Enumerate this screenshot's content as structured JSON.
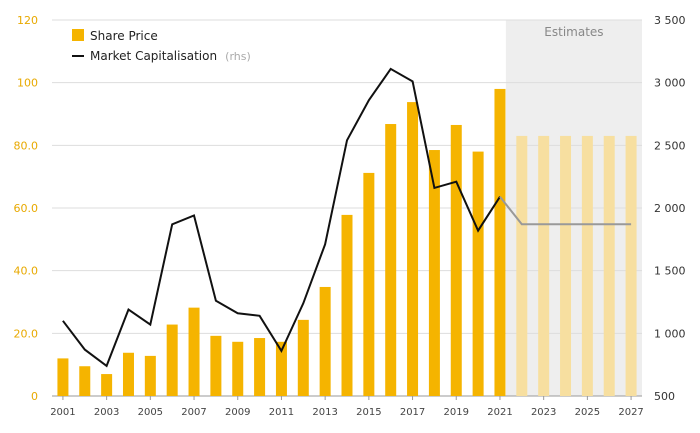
{
  "chart_data": {
    "type": "bar",
    "title": "",
    "x": [
      2001,
      2002,
      2003,
      2004,
      2005,
      2006,
      2007,
      2008,
      2009,
      2010,
      2011,
      2012,
      2013,
      2014,
      2015,
      2016,
      2017,
      2018,
      2019,
      2020,
      2021,
      2022,
      2023,
      2024,
      2025,
      2026,
      2027
    ],
    "x_tick_labels": [
      "2001",
      "2003",
      "2005",
      "2007",
      "2009",
      "2011",
      "2013",
      "2015",
      "2017",
      "2019",
      "2021",
      "2023",
      "2025",
      "2027"
    ],
    "series": [
      {
        "name": "Share Price",
        "type": "bar",
        "axis": "left",
        "values": [
          12,
          9.5,
          7,
          13.8,
          12.8,
          22.8,
          28.2,
          19.2,
          17.3,
          18.5,
          17.3,
          24.3,
          34.8,
          57.8,
          71.2,
          86.8,
          93.8,
          78.5,
          86.5,
          78,
          98,
          83,
          83,
          83,
          83,
          83,
          83
        ]
      },
      {
        "name": "Market Capitalisation",
        "name_suffix": "(rhs)",
        "type": "line",
        "axis": "right",
        "values": [
          1100,
          870,
          740,
          1190,
          1070,
          1870,
          1940,
          1260,
          1160,
          1140,
          860,
          1240,
          1710,
          2540,
          2860,
          3110,
          3010,
          2160,
          2210,
          1820,
          2090,
          1870,
          1870,
          1870,
          1870,
          1870,
          1870
        ]
      }
    ],
    "left_axis": {
      "ticks": [
        "0",
        "20.0",
        "40.0",
        "60.0",
        "80.0",
        "100",
        "120"
      ],
      "min": 0,
      "max": 120
    },
    "right_axis": {
      "ticks": [
        "500",
        "1 000",
        "1 500",
        "2 000",
        "2 500",
        "3 000",
        "3 500"
      ],
      "min": 500,
      "max": 3500
    },
    "estimates_start": 2022,
    "estimates_label": "Estimates",
    "legend_position": "top-left",
    "grid": "horizontal"
  },
  "colors": {
    "bar": "#f5b400",
    "bar_estimate": "#f7dfa0",
    "line": "#111111",
    "line_estimate": "#999999",
    "estimate_band": "#eeeeee",
    "grid": "#dddddd"
  }
}
